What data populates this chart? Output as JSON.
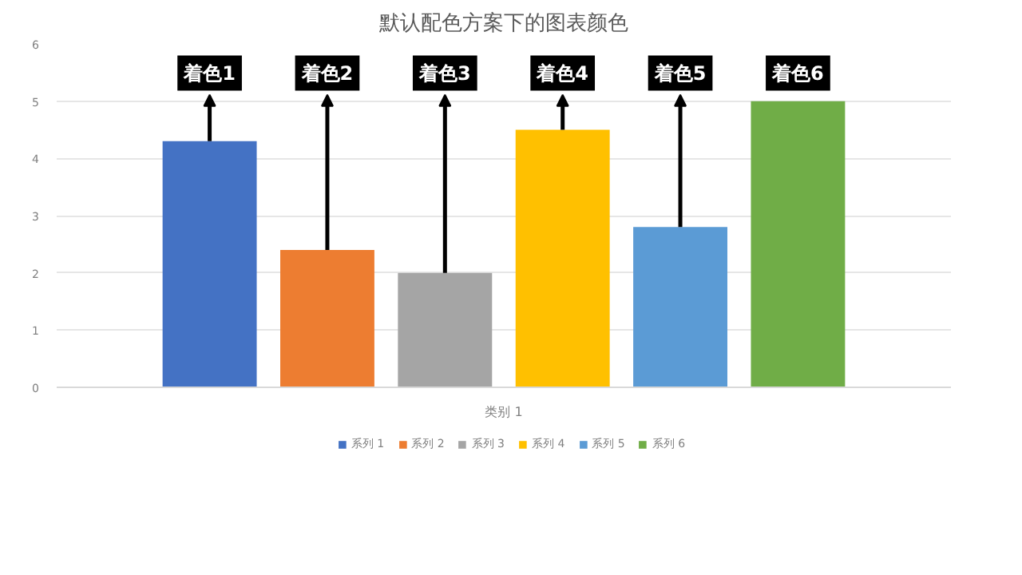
{
  "chart_data": {
    "type": "bar",
    "title": "默认配色方案下的图表颜色",
    "categories": [
      "类别 1"
    ],
    "series": [
      {
        "name": "系列 1",
        "color": "#4472c4",
        "values": [
          4.3
        ]
      },
      {
        "name": "系列 2",
        "color": "#ed7d31",
        "values": [
          2.4
        ]
      },
      {
        "name": "系列 3",
        "color": "#a5a5a5",
        "values": [
          2.0
        ]
      },
      {
        "name": "系列 4",
        "color": "#ffc000",
        "values": [
          4.5
        ]
      },
      {
        "name": "系列 5",
        "color": "#5b9bd5",
        "values": [
          2.8
        ]
      },
      {
        "name": "系列 6",
        "color": "#70ad47",
        "values": [
          5.0
        ]
      }
    ],
    "annotations": [
      "着色1",
      "着色2",
      "着色3",
      "着色4",
      "着色5",
      "着色6"
    ],
    "ylim": [
      0,
      6
    ],
    "yticks": [
      0,
      1,
      2,
      3,
      4,
      5,
      6
    ],
    "grid": "y",
    "legend": "bottom"
  }
}
